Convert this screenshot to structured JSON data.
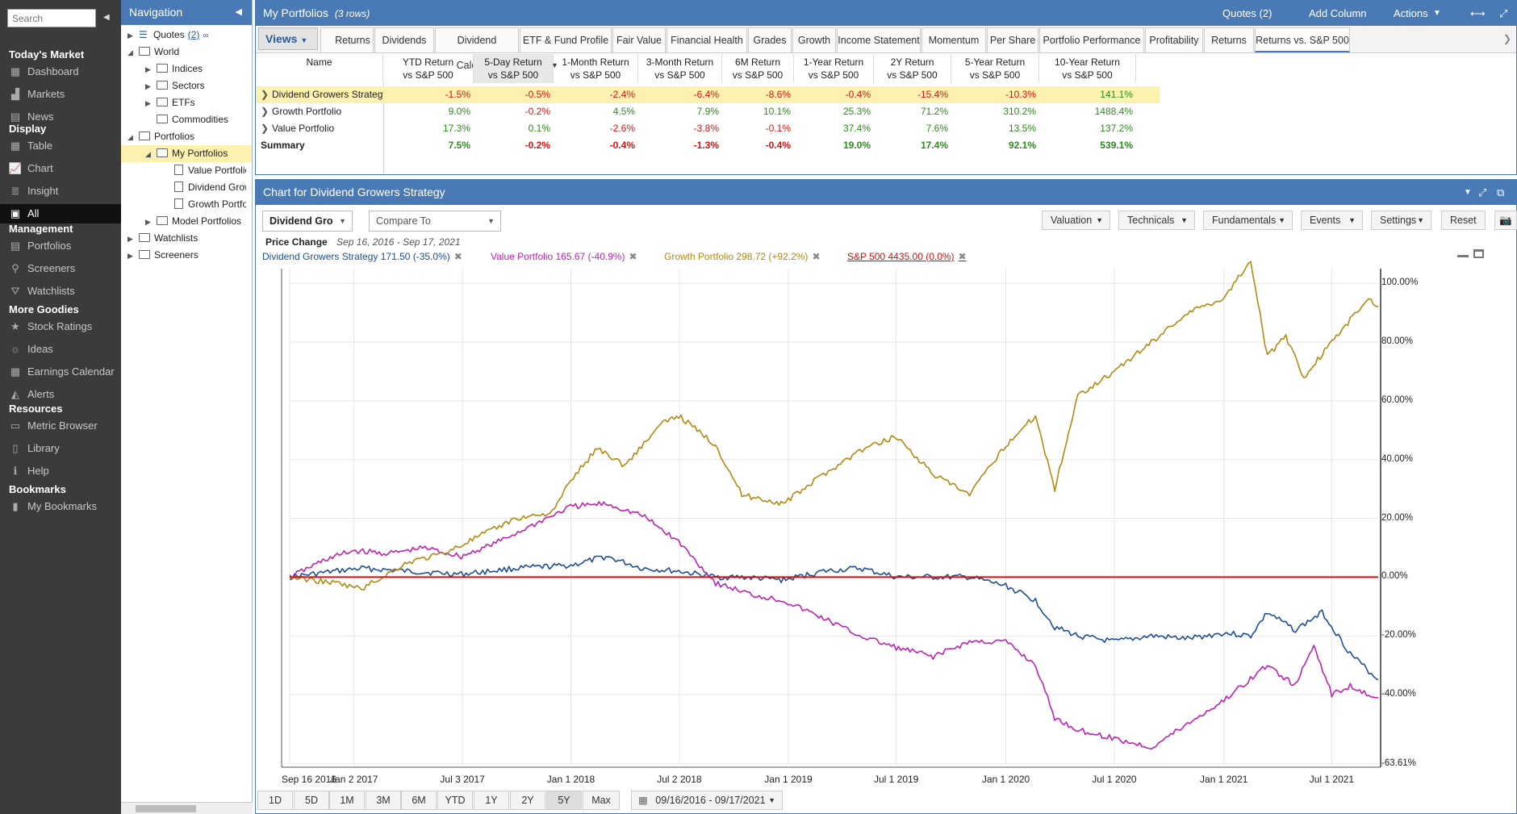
{
  "sidebar": {
    "search_placeholder": "Search",
    "sections": [
      {
        "title": "Today's Market",
        "items": [
          {
            "label": "Dashboard",
            "icon": "dashboard-icon"
          },
          {
            "label": "Markets",
            "icon": "markets-icon"
          },
          {
            "label": "News",
            "icon": "news-icon"
          }
        ]
      },
      {
        "title": "Display",
        "items": [
          {
            "label": "Table",
            "icon": "table-icon"
          },
          {
            "label": "Chart",
            "icon": "chart-icon"
          },
          {
            "label": "Insight",
            "icon": "insight-icon"
          },
          {
            "label": "All",
            "icon": "all-icon",
            "active": true
          }
        ]
      },
      {
        "title": "Management",
        "items": [
          {
            "label": "Portfolios",
            "icon": "portfolios-icon"
          },
          {
            "label": "Screeners",
            "icon": "screeners-icon"
          },
          {
            "label": "Watchlists",
            "icon": "watchlists-icon"
          }
        ]
      },
      {
        "title": "More Goodies",
        "items": [
          {
            "label": "Stock Ratings",
            "icon": "star-icon"
          },
          {
            "label": "Ideas",
            "icon": "lightbulb-icon"
          },
          {
            "label": "Earnings Calendar",
            "icon": "calendar-icon"
          },
          {
            "label": "Alerts",
            "icon": "bell-icon"
          }
        ]
      },
      {
        "title": "Resources",
        "items": [
          {
            "label": "Metric Browser",
            "icon": "metric-browser-icon"
          },
          {
            "label": "Library",
            "icon": "library-icon"
          },
          {
            "label": "Help",
            "icon": "help-icon"
          }
        ]
      },
      {
        "title": "Bookmarks",
        "items": [
          {
            "label": "My Bookmarks",
            "icon": "bookmark-icon"
          }
        ]
      }
    ]
  },
  "nav": {
    "title": "Navigation",
    "tree": [
      {
        "label": "Quotes",
        "count": "(2)",
        "depth": 0,
        "type": "list",
        "twisty": "closed"
      },
      {
        "label": "World",
        "depth": 0,
        "type": "folder-open",
        "twisty": "open"
      },
      {
        "label": "Indices",
        "depth": 1,
        "type": "folder",
        "twisty": "closed"
      },
      {
        "label": "Sectors",
        "depth": 1,
        "type": "folder",
        "twisty": "closed"
      },
      {
        "label": "ETFs",
        "depth": 1,
        "type": "folder",
        "twisty": "closed"
      },
      {
        "label": "Commodities",
        "depth": 1,
        "type": "folder",
        "twisty": "none"
      },
      {
        "label": "Portfolios",
        "depth": 0,
        "type": "folder-open",
        "twisty": "open"
      },
      {
        "label": "My Portfolios",
        "depth": 1,
        "type": "folder-open",
        "twisty": "open",
        "selected": true
      },
      {
        "label": "Value Portfolio",
        "depth": 2,
        "type": "doc",
        "twisty": "none"
      },
      {
        "label": "Dividend Growers Strategy",
        "depth": 2,
        "type": "doc",
        "twisty": "none"
      },
      {
        "label": "Growth Portfolio",
        "depth": 2,
        "type": "doc",
        "twisty": "none"
      },
      {
        "label": "Model Portfolios",
        "depth": 1,
        "type": "folder",
        "twisty": "closed"
      },
      {
        "label": "Watchlists",
        "depth": 0,
        "type": "folder",
        "twisty": "closed"
      },
      {
        "label": "Screeners",
        "depth": 0,
        "type": "folder",
        "twisty": "closed"
      }
    ]
  },
  "top": {
    "title": "My Portfolios",
    "subtitle": "(3 rows)",
    "quotes_label": "Quotes (2)",
    "add_column": "Add Column",
    "actions": "Actions",
    "views": "Views",
    "tabs": [
      "Returns",
      "Dividends",
      "Dividend Calendar",
      "ETF & Fund Profile",
      "Fair Value",
      "Financial Health",
      "Grades",
      "Growth",
      "Income Statement",
      "Momentum",
      "Per Share",
      "Portfolio Performance",
      "Profitability",
      "Returns",
      "Returns vs. S&P 500"
    ],
    "active_tab": 14,
    "columns": [
      {
        "l1": "Name",
        "l2": ""
      },
      {
        "l1": "YTD Return",
        "l2": "vs S&P 500"
      },
      {
        "l1": "5-Day Return",
        "l2": "vs S&P 500"
      },
      {
        "l1": "1-Month Return",
        "l2": "vs S&P 500"
      },
      {
        "l1": "3-Month Return",
        "l2": "vs S&P 500"
      },
      {
        "l1": "6M Return",
        "l2": "vs S&P 500"
      },
      {
        "l1": "1-Year Return",
        "l2": "vs S&P 500"
      },
      {
        "l1": "2Y Return",
        "l2": "vs S&P 500"
      },
      {
        "l1": "5-Year Return",
        "l2": "vs S&P 500"
      },
      {
        "l1": "10-Year Return",
        "l2": "vs S&P 500"
      }
    ],
    "rows": [
      {
        "name": "Dividend Growers Strategy",
        "values": [
          "-1.5%",
          "-0.5%",
          "-2.4%",
          "-6.4%",
          "-8.6%",
          "-0.4%",
          "-15.4%",
          "-10.3%",
          "141.1%"
        ],
        "highlight": true
      },
      {
        "name": "Growth Portfolio",
        "values": [
          "9.0%",
          "-0.2%",
          "4.5%",
          "7.9%",
          "10.1%",
          "25.3%",
          "71.2%",
          "310.2%",
          "1488.4%"
        ]
      },
      {
        "name": "Value Portfolio",
        "values": [
          "17.3%",
          "0.1%",
          "-2.6%",
          "-3.8%",
          "-0.1%",
          "37.4%",
          "7.6%",
          "13.5%",
          "137.2%"
        ]
      }
    ],
    "summary": {
      "name": "Summary",
      "values": [
        "7.5%",
        "-0.2%",
        "-0.4%",
        "-1.3%",
        "-0.4%",
        "19.0%",
        "17.4%",
        "92.1%",
        "539.1%"
      ]
    }
  },
  "chart_panel": {
    "title": "Chart for Dividend Growers Strategy",
    "symbol": "Dividend Gro",
    "compare_placeholder": "Compare To",
    "toolbar": [
      "Valuation",
      "Technicals",
      "Fundamentals",
      "Events",
      "Settings"
    ],
    "reset": "Reset",
    "price_change_label": "Price Change",
    "date_range": "Sep 16, 2016 - Sep 17, 2021",
    "ranges": [
      "1D",
      "5D",
      "1M",
      "3M",
      "6M",
      "YTD",
      "1Y",
      "2Y",
      "5Y",
      "Max"
    ],
    "active_range": "5Y",
    "date_input": "09/16/2016 - 09/17/2021"
  },
  "chart_data": {
    "type": "line",
    "title": "",
    "x_ticks": [
      "Sep 16 2016",
      "Jan 2 2017",
      "Jul 3 2017",
      "Jan 1 2018",
      "Jul 2 2018",
      "Jan 1 2019",
      "Jul 1 2019",
      "Jan 1 2020",
      "Jul 1 2020",
      "Jan 1 2021",
      "Jul 1 2021"
    ],
    "y_ticks": [
      "100.00%",
      "80.00%",
      "60.00%",
      "40.00%",
      "20.00%",
      "0.00%",
      "-20.00%",
      "-40.00%",
      "-63.61%"
    ],
    "ylim": [
      -63.61,
      105
    ],
    "series": [
      {
        "name": "Dividend Growers Strategy",
        "label": "Dividend Growers Strategy 171.50 (-35.0%)",
        "color": "#1f4e96",
        "x": [
          "2016-09-16",
          "2016-12-01",
          "2017-01-15",
          "2017-04-01",
          "2017-07-01",
          "2017-10-01",
          "2018-01-01",
          "2018-03-01",
          "2018-05-01",
          "2018-07-01",
          "2018-09-01",
          "2018-10-15",
          "2018-12-24",
          "2019-03-01",
          "2019-05-01",
          "2019-07-01",
          "2019-09-01",
          "2019-11-01",
          "2020-01-01",
          "2020-02-20",
          "2020-03-23",
          "2020-05-01",
          "2020-07-01",
          "2020-09-01",
          "2020-11-01",
          "2021-01-01",
          "2021-02-15",
          "2021-03-15",
          "2021-05-01",
          "2021-06-15",
          "2021-08-01",
          "2021-09-17"
        ],
        "y": [
          0,
          2,
          3,
          2,
          1,
          3,
          4,
          7,
          3,
          2,
          0,
          0,
          -1,
          2,
          3,
          0,
          0,
          0,
          -3,
          -8,
          -17,
          -20,
          -22,
          -20,
          -21,
          -19,
          -20,
          -12,
          -18,
          -12,
          -26,
          -35
        ]
      },
      {
        "name": "Value Portfolio",
        "label": "Value Portfolio 165.67 (-40.9%)",
        "color": "#c021b5",
        "x": [
          "2016-09-16",
          "2016-11-15",
          "2017-01-01",
          "2017-03-01",
          "2017-05-01",
          "2017-07-01",
          "2017-09-01",
          "2017-11-01",
          "2018-01-01",
          "2018-03-01",
          "2018-05-01",
          "2018-07-01",
          "2018-09-01",
          "2018-11-01",
          "2018-12-24",
          "2019-03-01",
          "2019-05-01",
          "2019-07-01",
          "2019-09-01",
          "2019-11-01",
          "2020-01-01",
          "2020-02-20",
          "2020-03-23",
          "2020-05-01",
          "2020-07-01",
          "2020-09-01",
          "2020-11-01",
          "2021-01-01",
          "2021-03-15",
          "2021-05-01",
          "2021-06-01",
          "2021-07-01",
          "2021-08-01",
          "2021-09-17"
        ],
        "y": [
          0,
          6,
          9,
          8,
          10,
          7,
          12,
          18,
          24,
          25,
          21,
          12,
          -2,
          -6,
          -8,
          -14,
          -20,
          -24,
          -27,
          -22,
          -22,
          -30,
          -48,
          -52,
          -55,
          -58,
          -50,
          -42,
          -30,
          -37,
          -23,
          -40,
          -37,
          -41
        ]
      },
      {
        "name": "Growth Portfolio",
        "label": "Growth Portfolio 298.72 (+92.2%)",
        "color": "#b28a12",
        "x": [
          "2016-09-16",
          "2016-12-01",
          "2017-01-15",
          "2017-04-01",
          "2017-06-01",
          "2017-08-01",
          "2017-10-01",
          "2017-12-01",
          "2018-01-01",
          "2018-02-15",
          "2018-04-01",
          "2018-06-01",
          "2018-07-01",
          "2018-09-01",
          "2018-10-15",
          "2018-12-24",
          "2019-03-01",
          "2019-05-01",
          "2019-07-01",
          "2019-09-01",
          "2019-11-01",
          "2020-01-01",
          "2020-02-20",
          "2020-03-23",
          "2020-05-01",
          "2020-07-01",
          "2020-09-01",
          "2020-11-01",
          "2021-01-01",
          "2021-02-15",
          "2021-03-15",
          "2021-04-15",
          "2021-05-15",
          "2021-07-01",
          "2021-09-01",
          "2021-09-17"
        ],
        "y": [
          0,
          -2,
          -4,
          5,
          8,
          14,
          20,
          22,
          33,
          44,
          38,
          52,
          55,
          45,
          28,
          25,
          35,
          43,
          48,
          35,
          28,
          45,
          55,
          30,
          62,
          70,
          80,
          90,
          95,
          108,
          75,
          82,
          68,
          80,
          95,
          92
        ]
      },
      {
        "name": "S&P 500",
        "label": "S&P 500 4435.00 (0.0%)",
        "color": "#cc1111",
        "x": [
          "2016-09-16",
          "2021-09-17"
        ],
        "y": [
          0,
          0
        ]
      }
    ]
  }
}
